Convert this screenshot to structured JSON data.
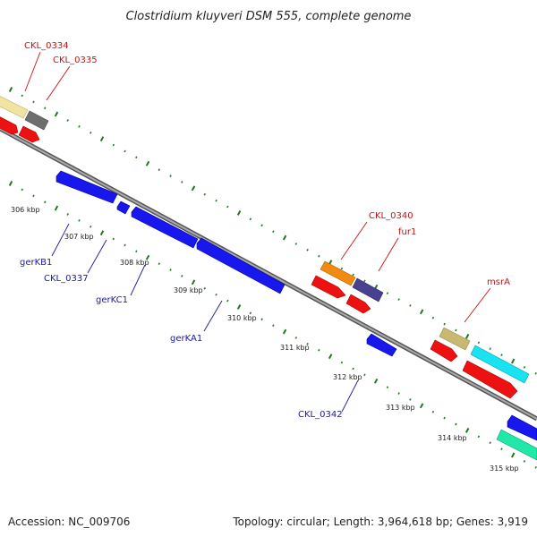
{
  "title": "Clostridium kluyveri DSM 555, complete genome",
  "footer": {
    "accession": "Accession: NC_009706",
    "topology": "Topology: circular; Length: 3,964,618 bp; Genes: 3,919"
  },
  "colors": {
    "backbone": "#8a8a8a",
    "tick": "#1e7a1e",
    "red_label": "#cc1111",
    "blue_label": "#1a1aa0"
  },
  "scale_labels": [
    "306 kbp",
    "307 kbp",
    "308 kbp",
    "309 kbp",
    "310 kbp",
    "311 kbp",
    "312 kbp",
    "313 kbp",
    "314 kbp",
    "315 kbp"
  ],
  "genes_forward": [
    {
      "name": "CKL_0334",
      "color": "#efe4a0"
    },
    {
      "name": "CKL_0335",
      "color": "#6e6e6e"
    },
    {
      "name": "CKL_0340",
      "color": "#f08a10"
    },
    {
      "name": "fur1",
      "color": "#4a4090"
    },
    {
      "name": "msrA",
      "color": "#c8b870"
    },
    {
      "name": "",
      "color": "#19e3f0"
    }
  ],
  "genes_reverse": [
    {
      "name": "gerKB1",
      "color": "#1818ee"
    },
    {
      "name": "CKL_0337",
      "color": "#1818ee"
    },
    {
      "name": "gerKC1",
      "color": "#1818ee"
    },
    {
      "name": "gerKA1",
      "color": "#1818ee"
    },
    {
      "name": "CKL_0342",
      "color": "#1818ee"
    },
    {
      "name": "",
      "color": "#1818ee"
    },
    {
      "name": "",
      "color": "#20e8a8"
    }
  ]
}
